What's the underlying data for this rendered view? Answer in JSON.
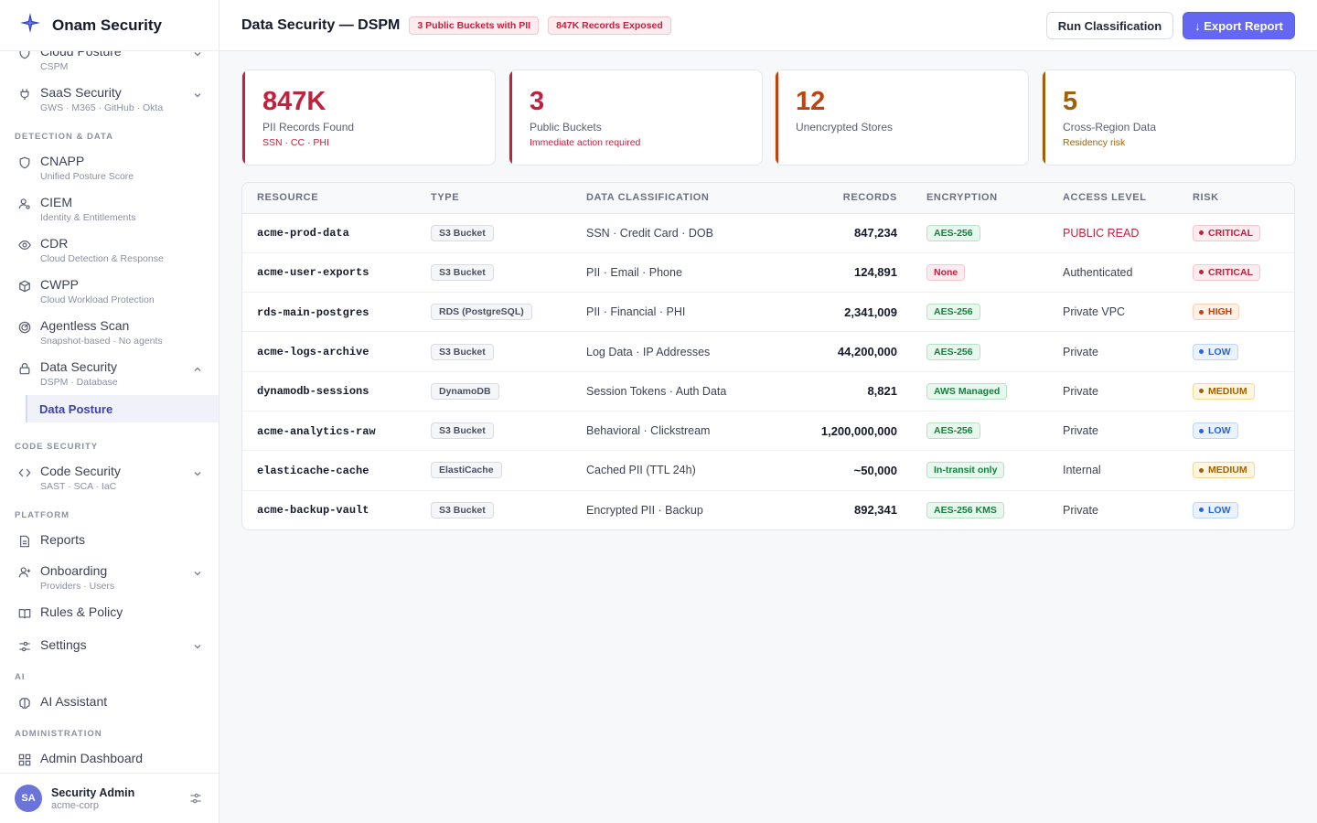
{
  "brand": {
    "name": "Onam Security"
  },
  "sidebar": {
    "items": [
      {
        "label": "Cloud Posture",
        "sub": "CSPM"
      },
      {
        "label": "SaaS Security",
        "sub": "GWS · M365 · GitHub · Okta"
      },
      {
        "label": "CNAPP",
        "sub": "Unified Posture Score"
      },
      {
        "label": "CIEM",
        "sub": "Identity & Entitlements"
      },
      {
        "label": "CDR",
        "sub": "Cloud Detection & Response"
      },
      {
        "label": "CWPP",
        "sub": "Cloud Workload Protection"
      },
      {
        "label": "Agentless Scan",
        "sub": "Snapshot-based · No agents"
      },
      {
        "label": "Data Security",
        "sub": "DSPM · Database"
      },
      {
        "label": "Code Security",
        "sub": "SAST · SCA · IaC"
      },
      {
        "label": "Reports"
      },
      {
        "label": "Onboarding",
        "sub": "Providers · Users"
      },
      {
        "label": "Rules & Policy"
      },
      {
        "label": "Settings"
      },
      {
        "label": "AI Assistant"
      },
      {
        "label": "Admin Dashboard"
      }
    ],
    "sections": {
      "detection": "DETECTION & DATA",
      "code": "CODE SECURITY",
      "platform": "PLATFORM",
      "ai": "AI",
      "admin": "ADMINISTRATION"
    },
    "active_sub": "Data Posture"
  },
  "user": {
    "initials": "SA",
    "name": "Security Admin",
    "org": "acme-corp"
  },
  "header": {
    "title": "Data Security — DSPM",
    "badges": [
      "3 Public Buckets with PII",
      "847K Records Exposed"
    ],
    "run_label": "Run Classification",
    "export_label": "↓ Export Report"
  },
  "stats": [
    {
      "value": "847K",
      "label": "PII Records Found",
      "note": "SSN · CC · PHI",
      "color": "#c0213c"
    },
    {
      "value": "3",
      "label": "Public Buckets",
      "note": "Immediate action required",
      "color": "#c0213c"
    },
    {
      "value": "12",
      "label": "Unencrypted Stores",
      "note": "",
      "color": "#c2410c"
    },
    {
      "value": "5",
      "label": "Cross-Region Data",
      "note": "Residency risk",
      "color": "#a16207"
    }
  ],
  "table": {
    "headers": [
      "RESOURCE",
      "TYPE",
      "DATA CLASSIFICATION",
      "RECORDS",
      "ENCRYPTION",
      "ACCESS LEVEL",
      "RISK"
    ],
    "rows": [
      {
        "resource": "acme-prod-data",
        "type": "S3 Bucket",
        "classification": "SSN · Credit Card · DOB",
        "records": "847,234",
        "encryption": "AES-256",
        "enc_state": "ok",
        "access": "PUBLIC READ",
        "risk": "CRITICAL"
      },
      {
        "resource": "acme-user-exports",
        "type": "S3 Bucket",
        "classification": "PII · Email · Phone",
        "records": "124,891",
        "encryption": "None",
        "enc_state": "bad",
        "access": "Authenticated",
        "risk": "CRITICAL"
      },
      {
        "resource": "rds-main-postgres",
        "type": "RDS (PostgreSQL)",
        "classification": "PII · Financial · PHI",
        "records": "2,341,009",
        "encryption": "AES-256",
        "enc_state": "ok",
        "access": "Private VPC",
        "risk": "HIGH"
      },
      {
        "resource": "acme-logs-archive",
        "type": "S3 Bucket",
        "classification": "Log Data · IP Addresses",
        "records": "44,200,000",
        "encryption": "AES-256",
        "enc_state": "ok",
        "access": "Private",
        "risk": "LOW"
      },
      {
        "resource": "dynamodb-sessions",
        "type": "DynamoDB",
        "classification": "Session Tokens · Auth Data",
        "records": "8,821",
        "encryption": "AWS Managed",
        "enc_state": "ok",
        "access": "Private",
        "risk": "MEDIUM"
      },
      {
        "resource": "acme-analytics-raw",
        "type": "S3 Bucket",
        "classification": "Behavioral · Clickstream",
        "records": "1,200,000,000",
        "encryption": "AES-256",
        "enc_state": "ok",
        "access": "Private",
        "risk": "LOW"
      },
      {
        "resource": "elasticache-cache",
        "type": "ElastiCache",
        "classification": "Cached PII (TTL 24h)",
        "records": "~50,000",
        "encryption": "In-transit only",
        "enc_state": "ok",
        "access": "Internal",
        "risk": "MEDIUM"
      },
      {
        "resource": "acme-backup-vault",
        "type": "S3 Bucket",
        "classification": "Encrypted PII · Backup",
        "records": "892,341",
        "encryption": "AES-256 KMS",
        "enc_state": "ok",
        "access": "Private",
        "risk": "LOW"
      }
    ]
  },
  "colors": {
    "accent": "#6467f2",
    "critical": "#c0213c",
    "high": "#c2410c",
    "medium": "#a16207",
    "low": "#2563eb",
    "ok": "#15803d"
  }
}
